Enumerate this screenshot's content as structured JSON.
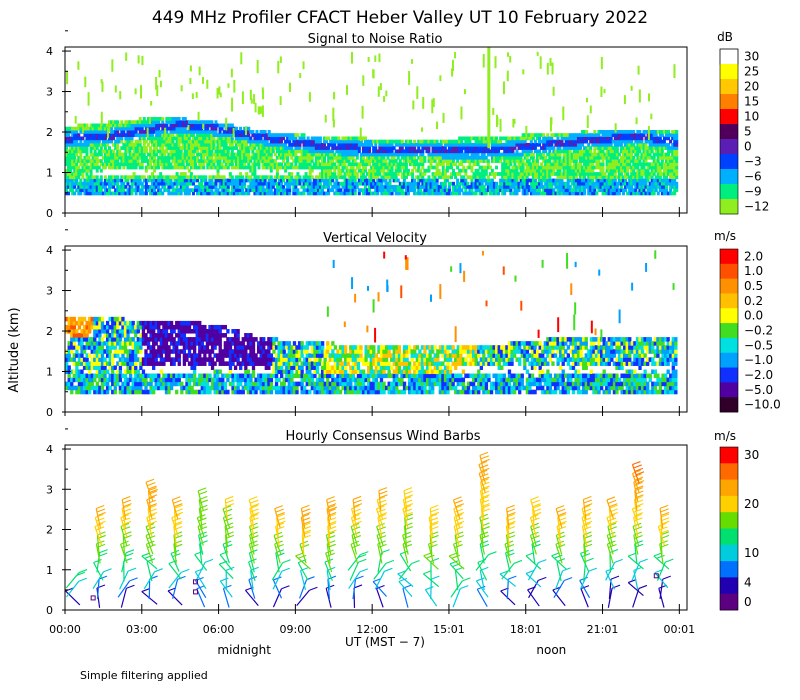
{
  "figure": {
    "title": "449 MHz Profiler CFACT Heber Valley UT 10 February 2022",
    "ylabel": "Altitude (km)",
    "xlabel": "UT  (MST − 7)",
    "x_ticks": [
      "00:00",
      "03:00",
      "06:00",
      "09:00",
      "12:00",
      "15:01",
      "18:01",
      "21:01",
      "00:01"
    ],
    "x_tick_hours": [
      0,
      3,
      6,
      9,
      12,
      15,
      18,
      21,
      24
    ],
    "x_sublabels": [
      {
        "text": "midnight",
        "hour": 7
      },
      {
        "text": "noon",
        "hour": 19
      }
    ],
    "footnote": "Simple filtering applied",
    "xlim": [
      0,
      24.3
    ]
  },
  "chart_data": [
    {
      "type": "heatmap",
      "title": "Signal to Noise Ratio",
      "ylim": [
        0,
        4.1
      ],
      "y_ticks": [
        0,
        1,
        2,
        3,
        4
      ],
      "colorbar": {
        "unit": "dB",
        "labels": [
          "30",
          "25",
          "20",
          "15",
          "10",
          "5",
          "0",
          "−3",
          "−6",
          "−9",
          "−12"
        ],
        "colors": [
          "#ffffff",
          "#ffff00",
          "#ffc800",
          "#ff8000",
          "#ff0000",
          "#50005a",
          "#5a1eb4",
          "#0040ff",
          "#00b0ff",
          "#00ee80",
          "#90ee20"
        ]
      },
      "layers": [
        {
          "band": "upper",
          "note": "green SNR layer with dark-blue top",
          "top": [
            2.1,
            2.2,
            2.3,
            2.3,
            2.2,
            2.0,
            1.9,
            1.85,
            1.8,
            1.75,
            1.8,
            1.85,
            1.9,
            1.95,
            2.0,
            2.05,
            2.0
          ],
          "core": [
            1.8,
            1.85,
            2.0,
            2.15,
            2.05,
            1.85,
            1.7,
            1.6,
            1.55,
            1.55,
            1.5,
            1.5,
            1.6,
            1.7,
            1.8,
            1.85,
            1.7
          ]
        }
      ],
      "hours": [
        0,
        1.5,
        3,
        4.5,
        6,
        7.5,
        9,
        10.5,
        12,
        13.5,
        15,
        16.5,
        18,
        19.5,
        21,
        22.5,
        24
      ]
    },
    {
      "type": "heatmap",
      "title": "Vertical Velocity",
      "ylim": [
        0,
        4.1
      ],
      "y_ticks": [
        0,
        1,
        2,
        3,
        4
      ],
      "colorbar": {
        "unit": "m/s",
        "labels": [
          "2.0",
          "1.0",
          "0.5",
          "0.2",
          "0.0",
          "−0.2",
          "−0.5",
          "−1.0",
          "−2.0",
          "−5.0",
          "−10.0"
        ],
        "colors": [
          "#ff0000",
          "#ff5000",
          "#ff9000",
          "#ffc000",
          "#ffff00",
          "#40dd20",
          "#00e0e0",
          "#00a0ff",
          "#1030ff",
          "#5000a0",
          "#30002a"
        ]
      },
      "top": [
        2.3,
        2.3,
        2.2,
        2.2,
        2.1,
        1.8,
        1.7,
        1.65,
        1.6,
        1.6,
        1.6,
        1.6,
        1.7,
        1.8,
        1.8,
        1.8,
        1.8
      ],
      "hours": [
        0,
        1.5,
        3,
        4.5,
        6,
        7.5,
        9,
        10.5,
        12,
        13.5,
        15,
        16.5,
        18,
        19.5,
        21,
        22.5,
        24
      ]
    },
    {
      "type": "wind_barbs",
      "title": "Hourly Consensus Wind Barbs",
      "ylim": [
        0,
        4.1
      ],
      "y_ticks": [
        0,
        1,
        2,
        3,
        4
      ],
      "colorbar": {
        "unit": "m/s",
        "labels": [
          "30",
          "20",
          "10",
          "4",
          "0"
        ],
        "label_values": [
          30,
          20,
          10,
          4,
          0
        ],
        "colors": [
          "#ff0000",
          "#ff6a00",
          "#ffa500",
          "#ffd000",
          "#66dd00",
          "#00e070",
          "#00ccdd",
          "#0070ff",
          "#2000b0",
          "#5a0080"
        ]
      },
      "hours": [
        0,
        1,
        2,
        3,
        4,
        5,
        6,
        7,
        8,
        9,
        10,
        11,
        12,
        13,
        14,
        15,
        16,
        17,
        18,
        19,
        20,
        21,
        22,
        23
      ],
      "top_km": [
        0.8,
        2.5,
        2.7,
        3.0,
        2.6,
        2.8,
        2.7,
        2.6,
        2.5,
        2.5,
        2.6,
        2.7,
        2.8,
        2.8,
        2.5,
        2.7,
        3.8,
        2.5,
        2.6,
        2.5,
        2.6,
        2.7,
        3.5,
        2.3
      ],
      "speed_low": [
        3,
        3,
        3,
        3,
        3,
        4,
        4,
        3,
        3,
        3,
        3,
        3,
        3,
        4,
        5,
        6,
        4,
        3,
        2,
        3,
        3,
        2,
        2,
        2
      ],
      "speed_high": [
        10,
        20,
        20,
        22,
        20,
        14,
        16,
        18,
        20,
        22,
        22,
        20,
        20,
        18,
        18,
        20,
        22,
        20,
        18,
        20,
        20,
        20,
        24,
        20
      ]
    }
  ]
}
